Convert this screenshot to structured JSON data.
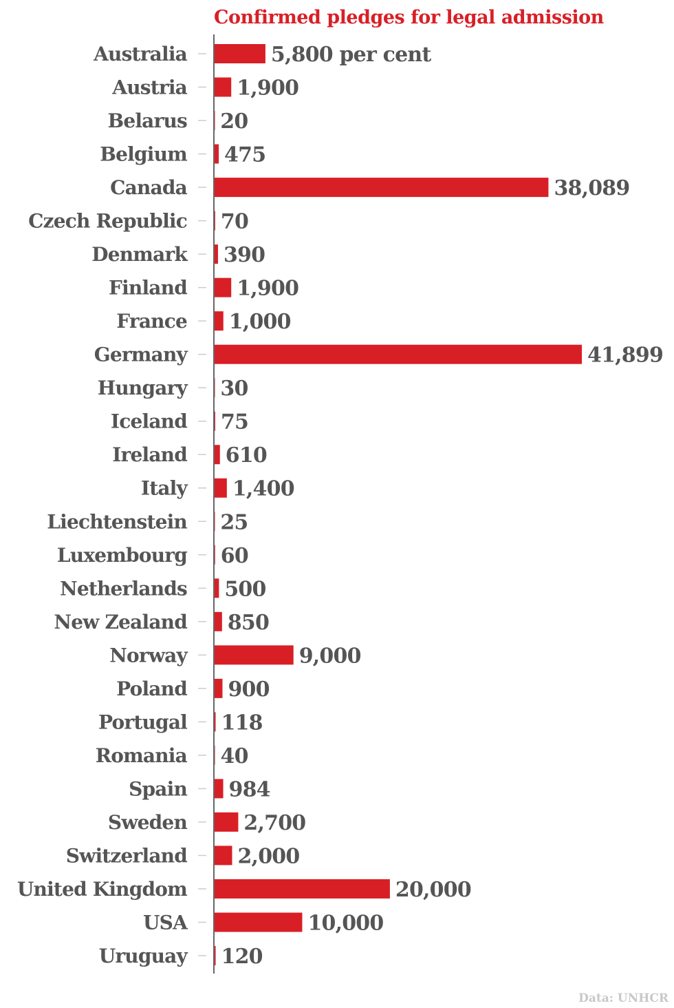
{
  "chart_data": {
    "type": "bar",
    "orientation": "horizontal",
    "title": "Confirmed pledges for legal admission",
    "source": "Data: UNHCR",
    "xlabel": "",
    "ylabel": "",
    "grid": false,
    "xlim": [
      0,
      41899
    ],
    "bar_color": "#d91f26",
    "label_color": "#555555",
    "categories": [
      "Australia",
      "Austria",
      "Belarus",
      "Belgium",
      "Canada",
      "Czech Republic",
      "Denmark",
      "Finland",
      "France",
      "Germany",
      "Hungary",
      "Iceland",
      "Ireland",
      "Italy",
      "Liechtenstein",
      "Luxembourg",
      "Netherlands",
      "New Zealand",
      "Norway",
      "Poland",
      "Portugal",
      "Romania",
      "Spain",
      "Sweden",
      "Switzerland",
      "United Kingdom",
      "USA",
      "Uruguay"
    ],
    "values": [
      5800,
      1900,
      20,
      475,
      38089,
      70,
      390,
      1900,
      1000,
      41899,
      30,
      75,
      610,
      1400,
      25,
      60,
      500,
      850,
      9000,
      900,
      118,
      40,
      984,
      2700,
      2000,
      20000,
      10000,
      120
    ],
    "data_labels": [
      "5,800 per cent",
      "1,900",
      "20",
      "475",
      "38,089",
      "70",
      "390",
      "1,900",
      "1,000",
      "41,899",
      "30",
      "75",
      "610",
      "1,400",
      "25",
      "60",
      "500",
      "850",
      "9,000",
      "900",
      "118",
      "40",
      "984",
      "2,700",
      "2,000",
      "20,000",
      "10,000",
      "120"
    ]
  }
}
